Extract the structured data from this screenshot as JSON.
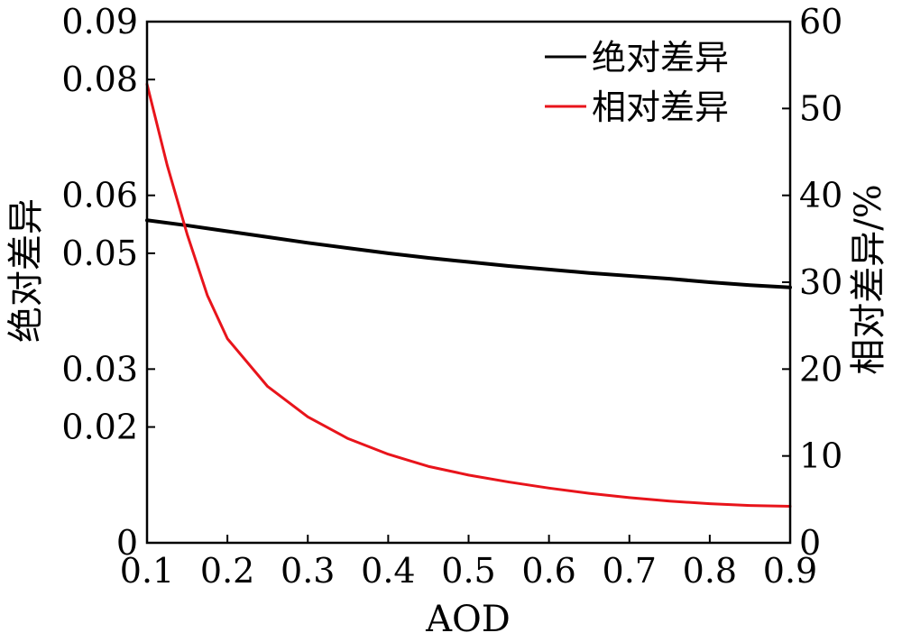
{
  "chart_data": {
    "type": "line",
    "xlabel": "AOD",
    "ylabel_left": "绝对差异",
    "ylabel_right": "相对差异/%",
    "xlim": [
      0.1,
      0.9
    ],
    "ylim_left": [
      0,
      0.09
    ],
    "ylim_right": [
      0,
      60
    ],
    "x_ticks": [
      "0.1",
      "0.2",
      "0.3",
      "0.4",
      "0.5",
      "0.6",
      "0.7",
      "0.8",
      "0.9"
    ],
    "y_left_ticks": [
      "0",
      "0.02",
      "0.03",
      "0.05",
      "0.06",
      "0.08",
      "0.09"
    ],
    "y_right_ticks": [
      "0",
      "10",
      "20",
      "30",
      "40",
      "50",
      "60"
    ],
    "grid": false,
    "legend_position": "top-right",
    "series": [
      {
        "name": "绝对差异",
        "axis": "left",
        "color": "#000000",
        "x": [
          0.1,
          0.15,
          0.2,
          0.25,
          0.3,
          0.35,
          0.4,
          0.45,
          0.5,
          0.55,
          0.6,
          0.65,
          0.7,
          0.75,
          0.8,
          0.85,
          0.9
        ],
        "y": [
          0.0557,
          0.0548,
          0.0538,
          0.0528,
          0.0518,
          0.0509,
          0.05,
          0.0492,
          0.0485,
          0.0478,
          0.0472,
          0.0466,
          0.0461,
          0.0456,
          0.045,
          0.0445,
          0.0441
        ]
      },
      {
        "name": "相对差异",
        "axis": "right",
        "color": "#e8141b",
        "x": [
          0.1,
          0.125,
          0.15,
          0.175,
          0.2,
          0.25,
          0.3,
          0.35,
          0.4,
          0.45,
          0.5,
          0.55,
          0.6,
          0.65,
          0.7,
          0.75,
          0.8,
          0.85,
          0.9
        ],
        "y": [
          52.8,
          43.5,
          35.5,
          28.5,
          23.5,
          18.0,
          14.5,
          12.0,
          10.2,
          8.8,
          7.8,
          7.0,
          6.3,
          5.7,
          5.2,
          4.8,
          4.5,
          4.3,
          4.2
        ]
      }
    ]
  }
}
